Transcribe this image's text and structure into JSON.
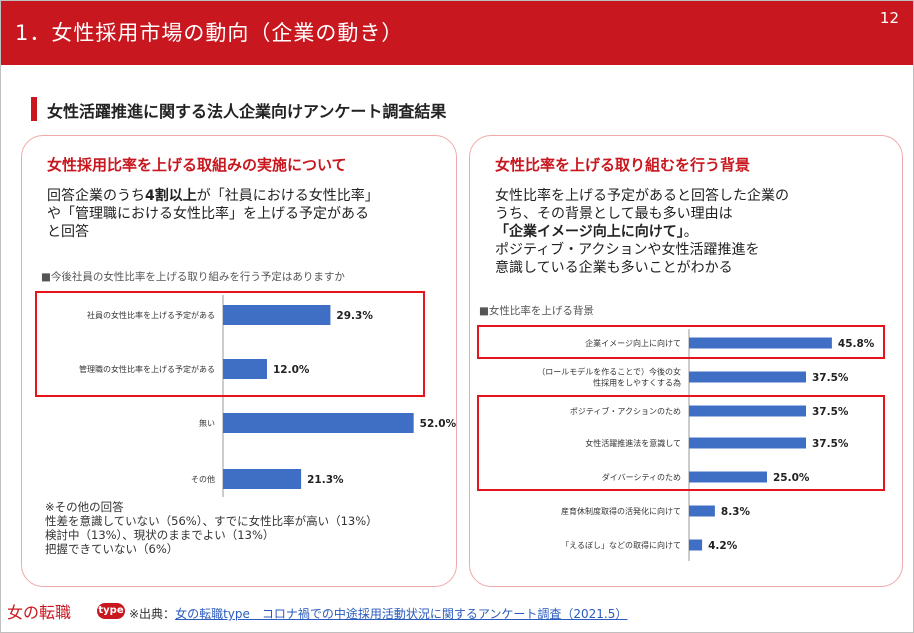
{
  "slide": {
    "title": "1．女性採用市場の動向（企業の動き）",
    "page_number": "12",
    "section_title": "女性活躍推進に関する法人企業向けアンケート調査結果"
  },
  "left_panel": {
    "heading": "女性採用比率を上げる取組みの実施について",
    "body_line1_pre": "回答企業のうち",
    "body_line1_bold": "4割以上",
    "body_line1_post": "が「社員における女性比率」",
    "body_line2": "や「管理職における女性比率」を上げる予定がある",
    "body_line3": "と回答",
    "question": "■今後社員の女性比率を上げる取り組みを行う予定はありますか",
    "notes": [
      "※その他の回答",
      "性差を意識していない（56%）、すでに女性比率が高い（13%）",
      "検討中（13%）、現状のままでよい（13%）",
      "把握できていない（6%）"
    ]
  },
  "right_panel": {
    "heading": "女性比率を上げる取り組むを行う背景",
    "body_line1": "女性比率を上げる予定があると回答した企業の",
    "body_line2": "うち、その背景として最も多い理由は",
    "body_line3_bold": "「企業イメージ向上に向けて」",
    "body_line3_post": "。",
    "body_line4": "ポジティブ・アクションや女性活躍推進を",
    "body_line5": "意識している企業も多いことがわかる",
    "question": "■女性比率を上げる背景"
  },
  "footer": {
    "logo_text": "女の転職",
    "logo_badge": "type",
    "source_prefix": "※出典：",
    "source_link": "女の転職type　コロナ禍での中途採用活動状況に関するアンケート調査（2021.5）"
  },
  "colors": {
    "brand_red": "#c8171e",
    "highlight_red": "#e8141c",
    "bar_blue": "#3f6fc4"
  },
  "chart_data": [
    {
      "type": "bar",
      "orientation": "horizontal",
      "categories": [
        "社員の女性比率を上げる予定がある",
        "管理職の女性比率を上げる予定がある",
        "無い",
        "その他"
      ],
      "values": [
        29.3,
        12.0,
        52.0,
        21.3
      ],
      "labels": [
        "29.3%",
        "12.0%",
        "52.0%",
        "21.3%"
      ],
      "xlim": [
        0,
        60
      ]
    },
    {
      "type": "bar",
      "orientation": "horizontal",
      "categories": [
        "企業イメージ向上に向けて",
        "（ロールモデルを作ることで）今後の女性採用をしやすくする為",
        "ポジティブ・アクションのため",
        "女性活躍推進法を意識して",
        "ダイバーシティのため",
        "産育休制度取得の活発化に向けて",
        "「えるぼし」などの取得に向けて"
      ],
      "values": [
        45.8,
        37.5,
        37.5,
        37.5,
        25.0,
        8.3,
        4.2
      ],
      "labels": [
        "45.8%",
        "37.5%",
        "37.5%",
        "37.5%",
        "25.0%",
        "8.3%",
        "4.2%"
      ],
      "xlim": [
        0,
        50
      ]
    }
  ]
}
